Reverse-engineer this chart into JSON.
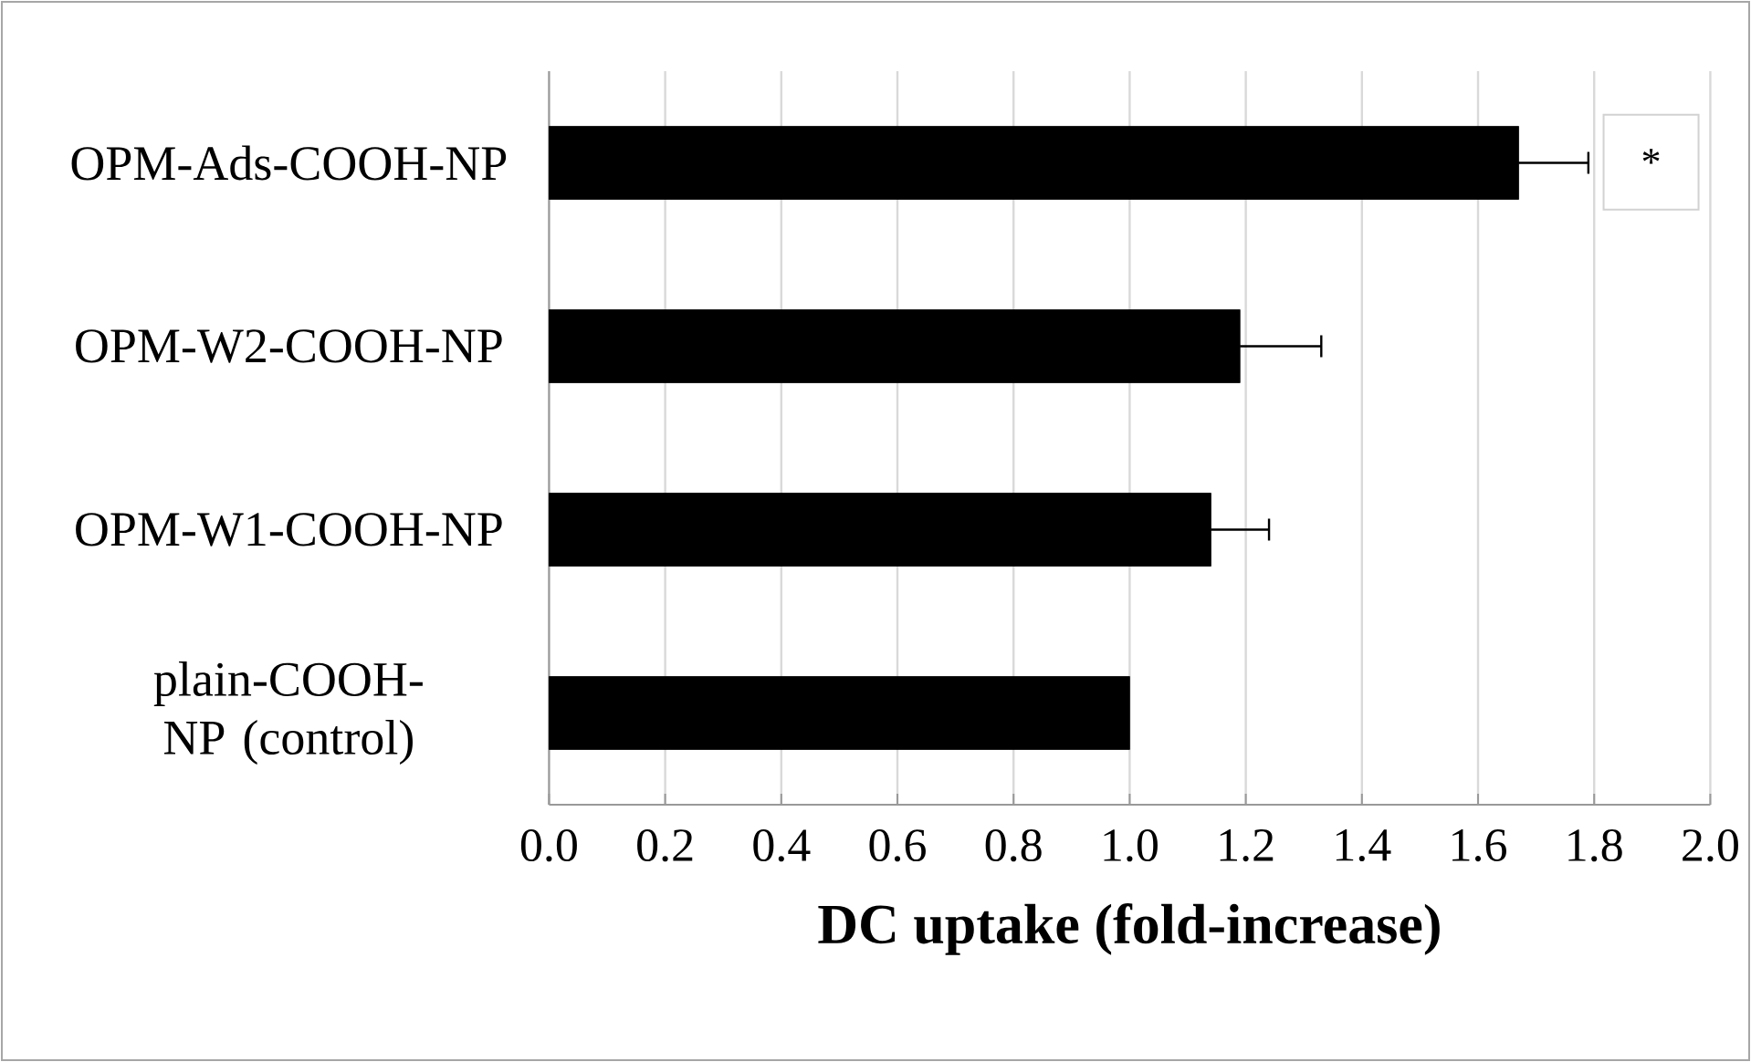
{
  "chart_data": {
    "type": "bar",
    "orientation": "horizontal",
    "categories": [
      "OPM-Ads-COOH-NP",
      "OPM-W2-COOH-NP",
      "OPM-W1-COOH-NP",
      "plain-COOH-NP (control)"
    ],
    "values": [
      1.67,
      1.19,
      1.14,
      1.0
    ],
    "errors": [
      0.12,
      0.14,
      0.1,
      null
    ],
    "color": "#000000",
    "xlabel": "DC uptake (fold-increase)",
    "xlim": [
      0,
      2
    ],
    "xticks": [
      {
        "value": 0,
        "label": "0.0"
      },
      {
        "value": 0.2,
        "label": "0.2"
      },
      {
        "value": 0.4,
        "label": "0.4"
      },
      {
        "value": 0.6,
        "label": "0.6"
      },
      {
        "value": 0.8,
        "label": "0.8"
      },
      {
        "value": 1,
        "label": "1.0"
      },
      {
        "value": 1.2,
        "label": "1.2"
      },
      {
        "value": 1.4,
        "label": "1.4"
      },
      {
        "value": 1.6,
        "label": "1.6"
      },
      {
        "value": 1.8,
        "label": "1.8"
      },
      {
        "value": 2,
        "label": "2.0"
      }
    ],
    "grid": "x",
    "annotations": [
      "*"
    ]
  }
}
